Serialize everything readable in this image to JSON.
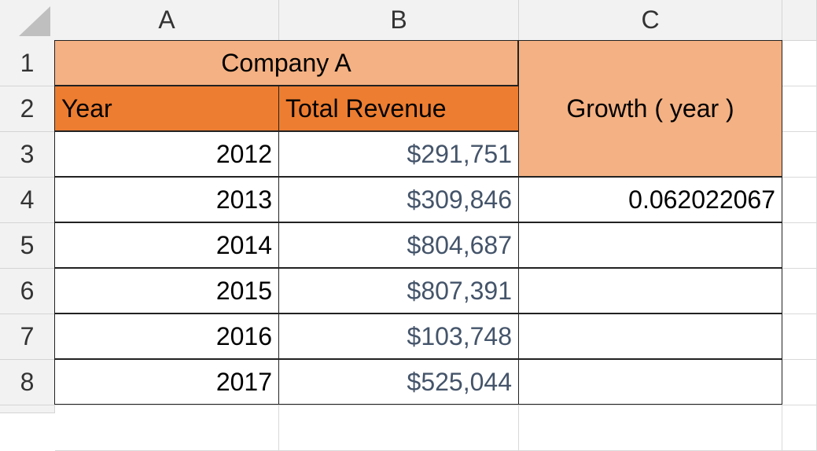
{
  "column_headers": [
    "A",
    "B",
    "C"
  ],
  "row_headers": [
    1,
    2,
    3,
    4,
    5,
    6,
    7,
    8
  ],
  "table": {
    "title": "Company A",
    "header": [
      "Year",
      "Total Revenue",
      "Growth ( year )"
    ],
    "rows": [
      {
        "year": 2012,
        "revenue": "$291,751"
      },
      {
        "year": 2013,
        "revenue": "$309,846",
        "growth": 0.062022067
      },
      {
        "year": 2014,
        "revenue": "$804,687"
      },
      {
        "year": 2015,
        "revenue": "$807,391"
      },
      {
        "year": 2016,
        "revenue": "$103,748"
      },
      {
        "year": 2017,
        "revenue": "$525,044"
      }
    ]
  }
}
